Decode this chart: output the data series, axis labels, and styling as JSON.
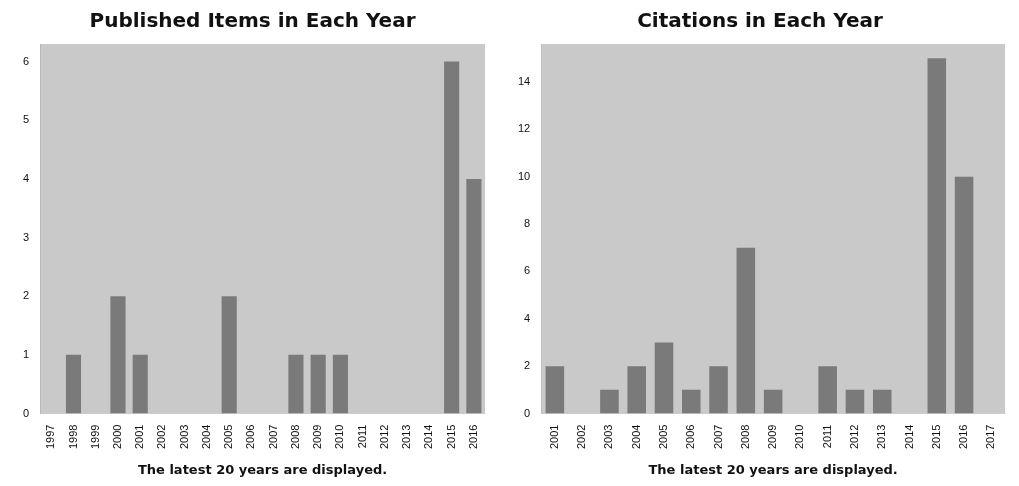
{
  "chart_data": [
    {
      "type": "bar",
      "title": "Published Items in Each Year",
      "categories": [
        "1997",
        "1998",
        "1999",
        "2000",
        "2001",
        "2002",
        "2003",
        "2004",
        "2005",
        "2006",
        "2007",
        "2008",
        "2009",
        "2010",
        "2011",
        "2012",
        "2013",
        "2014",
        "2015",
        "2016"
      ],
      "values": [
        0,
        1,
        0,
        2,
        1,
        0,
        0,
        0,
        2,
        0,
        0,
        1,
        1,
        1,
        0,
        0,
        0,
        0,
        6,
        4
      ],
      "color": "#7a7a7a",
      "ylim": [
        0,
        6.3
      ],
      "yticks": [
        0,
        1,
        2,
        3,
        4,
        5,
        6
      ],
      "grid": false,
      "legend": false,
      "annotations": [
        "The latest 20 years are displayed."
      ]
    },
    {
      "type": "bar",
      "title": "Citations in Each Year",
      "categories": [
        "2001",
        "2002",
        "2003",
        "2004",
        "2005",
        "2006",
        "2007",
        "2008",
        "2009",
        "2010",
        "2011",
        "2012",
        "2013",
        "2014",
        "2015",
        "2016",
        "2017"
      ],
      "values": [
        2,
        0,
        1,
        2,
        3,
        1,
        2,
        7,
        1,
        0,
        2,
        1,
        1,
        0,
        15,
        10,
        0
      ],
      "color": "#7a7a7a",
      "ylim": [
        0,
        15.6
      ],
      "yticks": [
        0,
        2,
        4,
        6,
        8,
        10,
        12,
        14
      ],
      "grid": false,
      "legend": false,
      "annotations": [
        "The latest 20 years are displayed."
      ]
    }
  ]
}
